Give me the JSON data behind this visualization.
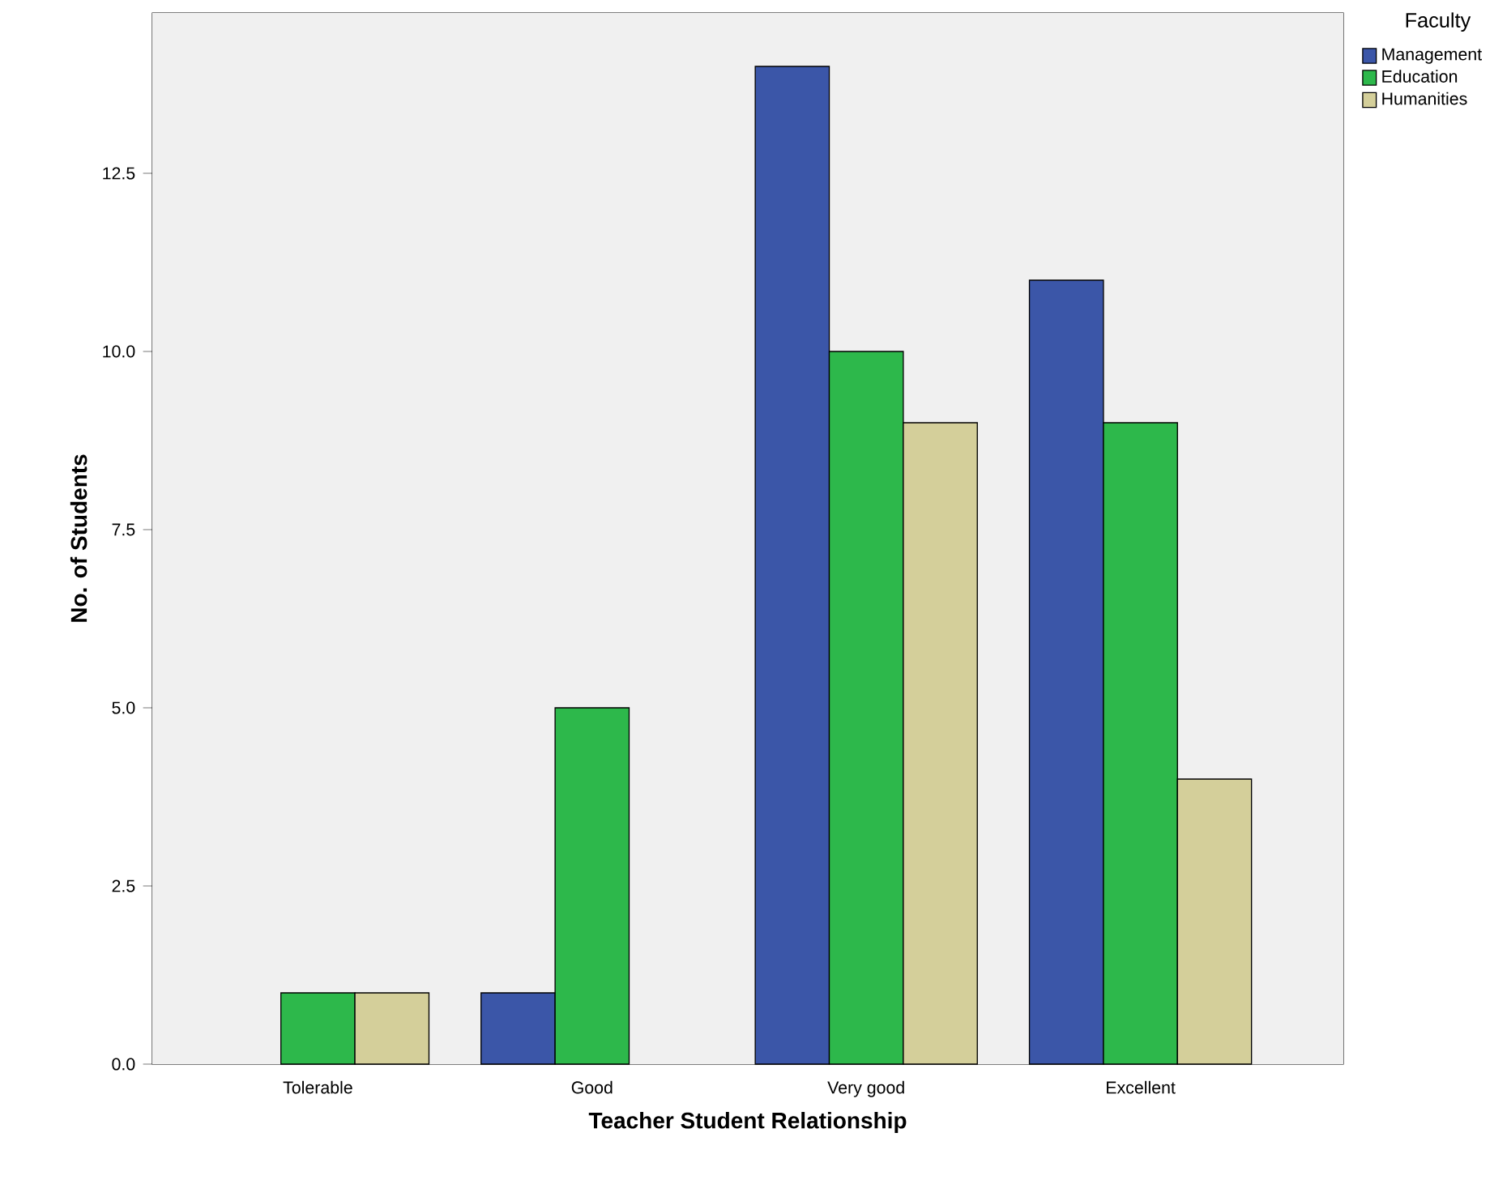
{
  "chart_data": {
    "type": "bar",
    "xlabel": "Teacher Student Relationship",
    "ylabel": "No. of Students",
    "legend_title": "Faculty",
    "categories": [
      "Tolerable",
      "Good",
      "Very good",
      "Excellent"
    ],
    "series": [
      {
        "name": "Management",
        "color": "#3b56a8",
        "values": [
          0,
          1,
          14,
          11
        ]
      },
      {
        "name": "Education",
        "color": "#2db84b",
        "values": [
          1,
          5,
          10,
          9
        ]
      },
      {
        "name": "Humanities",
        "color": "#d4cf9a",
        "values": [
          1,
          0,
          9,
          4
        ]
      }
    ],
    "ylim": [
      0,
      14.75
    ],
    "yticks": [
      {
        "value": 0,
        "label": "0.0"
      },
      {
        "value": 2.5,
        "label": "2.5"
      },
      {
        "value": 5,
        "label": "5.0"
      },
      {
        "value": 7.5,
        "label": "7.5"
      },
      {
        "value": 10,
        "label": "10.0"
      },
      {
        "value": 12.5,
        "label": "12.5"
      }
    ],
    "grid": false,
    "legend": "top right"
  }
}
